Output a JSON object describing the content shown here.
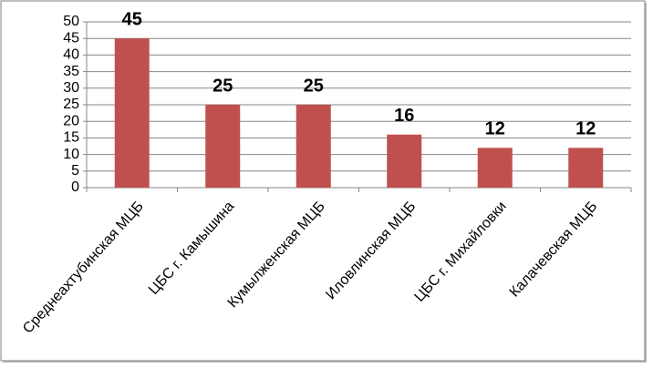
{
  "chart_data": {
    "type": "bar",
    "categories": [
      "Среднеахтубинская МЦБ",
      "ЦБС г. Камышина",
      "Кумылженская МЦБ",
      "Иловлинская МЦБ",
      "ЦБС г. Михайловки",
      "Калачевская МЦБ"
    ],
    "values": [
      45,
      25,
      25,
      16,
      12,
      12
    ],
    "color": "#c0504d",
    "ylim": [
      0,
      50
    ],
    "yticks": [
      0,
      5,
      10,
      15,
      20,
      25,
      30,
      35,
      40,
      45,
      50
    ],
    "grid": true
  }
}
